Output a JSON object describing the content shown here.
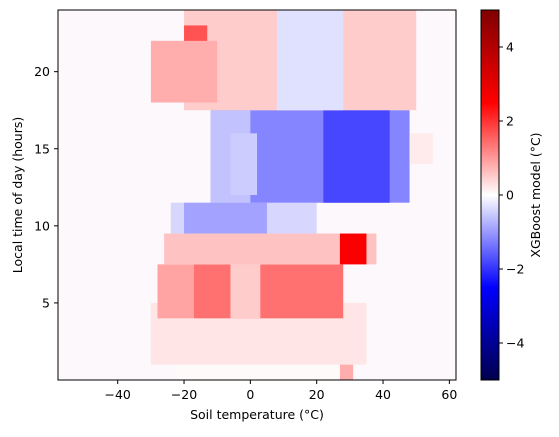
{
  "chart_data": {
    "type": "heatmap",
    "title": "",
    "xlabel": "Soil temperature (°C)",
    "ylabel": "Local time of day (hours)",
    "colorbar_label": "XGBoost model (°C)",
    "colormap": "seismic",
    "xlim": [
      -58,
      62
    ],
    "ylim": [
      0,
      24
    ],
    "clim": [
      -5,
      5
    ],
    "x_ticks": [
      -40,
      -20,
      0,
      20,
      40,
      60
    ],
    "x_tick_labels": [
      "−40",
      "−20",
      "0",
      "20",
      "40",
      "60"
    ],
    "y_ticks": [
      5,
      10,
      15,
      20
    ],
    "y_tick_labels": [
      "5",
      "10",
      "15",
      "20"
    ],
    "colorbar_ticks": [
      -4,
      -2,
      0,
      2,
      4
    ],
    "colorbar_tick_labels": [
      "−4",
      "−2",
      "0",
      "2",
      "4"
    ],
    "regions": [
      {
        "hours": [
          0,
          1
        ],
        "x": [
          -22,
          30
        ],
        "value": 0.05
      },
      {
        "hours": [
          0,
          1
        ],
        "x": [
          27,
          31
        ],
        "value": 0.8
      },
      {
        "hours": [
          1,
          5
        ],
        "x": [
          -30,
          35
        ],
        "value": 0.25
      },
      {
        "hours": [
          4,
          7.5
        ],
        "x": [
          -17,
          28
        ],
        "value": 1.4
      },
      {
        "hours": [
          4,
          7.5
        ],
        "x": [
          -28,
          -17
        ],
        "value": 0.9
      },
      {
        "hours": [
          4,
          7.5
        ],
        "x": [
          -6,
          3
        ],
        "value": 0.5
      },
      {
        "hours": [
          7.5,
          9.5
        ],
        "x": [
          -26,
          38
        ],
        "value": 0.6
      },
      {
        "hours": [
          7.5,
          9.5
        ],
        "x": [
          27,
          35
        ],
        "value": 2.6
      },
      {
        "hours": [
          9.5,
          11.5
        ],
        "x": [
          -24,
          20
        ],
        "value": -0.4
      },
      {
        "hours": [
          9.5,
          11.5
        ],
        "x": [
          -20,
          5
        ],
        "value": -0.9
      },
      {
        "hours": [
          11.5,
          17.5
        ],
        "x": [
          -12,
          48
        ],
        "value": -1.2
      },
      {
        "hours": [
          11.5,
          17.5
        ],
        "x": [
          -12,
          0
        ],
        "value": -0.6
      },
      {
        "hours": [
          11.5,
          17.5
        ],
        "x": [
          22,
          42
        ],
        "value": -1.8
      },
      {
        "hours": [
          12,
          16
        ],
        "x": [
          -6,
          2
        ],
        "value": -0.5
      },
      {
        "hours": [
          17.5,
          24
        ],
        "x": [
          -20,
          50
        ],
        "value": 0.5
      },
      {
        "hours": [
          17.5,
          24
        ],
        "x": [
          8,
          28
        ],
        "value": -0.3
      },
      {
        "hours": [
          18,
          23
        ],
        "x": [
          -20,
          -13
        ],
        "value": 1.7
      },
      {
        "hours": [
          18,
          22
        ],
        "x": [
          -30,
          -10
        ],
        "value": 0.8
      },
      {
        "hours": [
          14,
          16
        ],
        "x": [
          48,
          55
        ],
        "value": 0.2
      }
    ]
  }
}
